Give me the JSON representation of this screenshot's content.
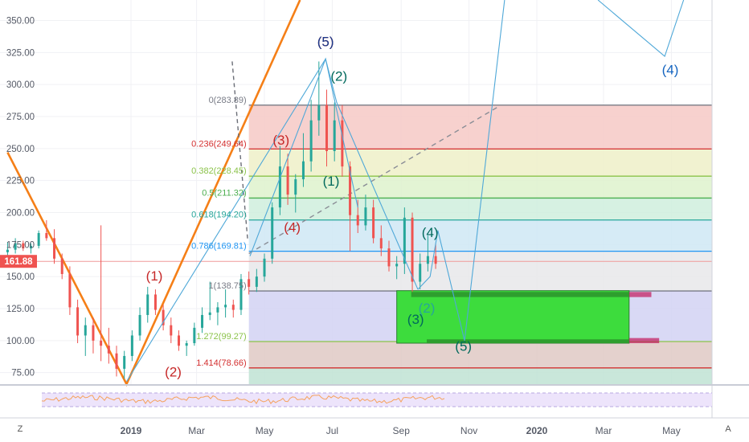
{
  "chart_data": {
    "type": "candlestick",
    "price_axis": {
      "ticks": [
        "350.00",
        "325.00",
        "300.00",
        "275.00",
        "250.00",
        "225.00",
        "200.00",
        "175.00",
        "150.00",
        "125.00",
        "100.00",
        "75.00"
      ],
      "tick_values": [
        350,
        325,
        300,
        275,
        250,
        225,
        200,
        175,
        150,
        125,
        100,
        75
      ],
      "range": [
        66,
        366
      ]
    },
    "time_axis": {
      "labels": [
        "2019",
        "Mar",
        "May",
        "Jul",
        "Sep",
        "Nov",
        "2020",
        "Mar",
        "May"
      ],
      "label_dates": [
        "2019-01-01",
        "2019-03-01",
        "2019-05-01",
        "2019-07-01",
        "2019-09-01",
        "2019-11-01",
        "2020-01-01",
        "2020-03-01",
        "2020-05-01"
      ],
      "bold": [
        "2019",
        "2020"
      ]
    },
    "last_price": {
      "label": "161.88",
      "value": 161.88
    },
    "fib_levels": [
      {
        "ratio": "0",
        "label": "0(283.89)",
        "value": 283.89,
        "color": "#787b86"
      },
      {
        "ratio": "0.236",
        "label": "0.236(249.64)",
        "value": 249.64,
        "color": "#d32f2f"
      },
      {
        "ratio": "0.382",
        "label": "0.382(228.45)",
        "value": 228.45,
        "color": "#8bc34a"
      },
      {
        "ratio": "0.5",
        "label": "0.5(211.32)",
        "value": 211.32,
        "color": "#4caf50"
      },
      {
        "ratio": "0.618",
        "label": "0.618(194.20)",
        "value": 194.2,
        "color": "#26a69a"
      },
      {
        "ratio": "0.786",
        "label": "0.786(169.81)",
        "value": 169.81,
        "color": "#2196f3"
      },
      {
        "ratio": "1",
        "label": "1(138.75)",
        "value": 138.75,
        "color": "#787b86"
      },
      {
        "ratio": "1.272",
        "label": "1.272(99.27)",
        "value": 99.27,
        "color": "#8bc34a"
      },
      {
        "ratio": "1.414",
        "label": "1.414(78.66)",
        "value": 78.66,
        "color": "#d32f2f"
      }
    ],
    "wave_labels": [
      {
        "text": "(1)",
        "date": "2019-01-22",
        "price": 147,
        "color": "#c62828"
      },
      {
        "text": "(2)",
        "date": "2019-02-08",
        "price": 72,
        "color": "#c62828"
      },
      {
        "text": "(3)",
        "date": "2019-05-16",
        "price": 253,
        "color": "#c62828"
      },
      {
        "text": "(4)",
        "date": "2019-05-26",
        "price": 185,
        "color": "#c62828"
      },
      {
        "text": "(5)",
        "date": "2019-06-25",
        "price": 330,
        "color": "#c62828"
      },
      {
        "text": "(5)",
        "date": "2019-06-25",
        "price": 330,
        "color": "#1a3a8c"
      },
      {
        "text": "(2)",
        "date": "2019-07-07",
        "price": 303,
        "color": "#00695c"
      },
      {
        "text": "(1)",
        "date": "2019-06-30",
        "price": 221,
        "color": "#00695c"
      },
      {
        "text": "(4)",
        "date": "2019-09-27",
        "price": 181,
        "color": "#00695c"
      },
      {
        "text": "(3)",
        "date": "2019-09-14",
        "price": 113,
        "color": "#00695c"
      },
      {
        "text": "(2)",
        "date": "2019-09-24",
        "price": 122,
        "color": "#26a69a"
      },
      {
        "text": "(5)",
        "date": "2019-10-27",
        "price": 92,
        "color": "#00695c"
      },
      {
        "text": "(4)",
        "date": "2020-04-30",
        "price": 308,
        "color": "#1565c0"
      }
    ],
    "ohlc": [
      [
        "2018-09-12",
        169,
        177,
        165,
        171
      ],
      [
        "2018-09-19",
        171,
        180,
        168,
        176
      ],
      [
        "2018-09-26",
        176,
        178,
        170,
        172
      ],
      [
        "2018-10-03",
        172,
        176,
        168,
        174
      ],
      [
        "2018-10-10",
        174,
        186,
        172,
        184
      ],
      [
        "2018-10-17",
        184,
        194,
        178,
        180
      ],
      [
        "2018-10-24",
        180,
        187,
        160,
        164
      ],
      [
        "2018-10-31",
        164,
        168,
        148,
        152
      ],
      [
        "2018-11-07",
        152,
        158,
        120,
        126
      ],
      [
        "2018-11-14",
        126,
        132,
        98,
        104
      ],
      [
        "2018-11-21",
        104,
        118,
        88,
        112
      ],
      [
        "2018-11-28",
        112,
        118,
        90,
        100
      ],
      [
        "2018-12-05",
        100,
        190,
        84,
        96
      ],
      [
        "2018-12-12",
        96,
        110,
        82,
        90
      ],
      [
        "2018-12-19",
        90,
        96,
        72,
        78
      ],
      [
        "2018-12-26",
        78,
        92,
        70,
        88
      ],
      [
        "2019-01-02",
        88,
        108,
        84,
        104
      ],
      [
        "2019-01-09",
        104,
        126,
        100,
        120
      ],
      [
        "2019-01-16",
        120,
        142,
        114,
        136
      ],
      [
        "2019-01-23",
        136,
        140,
        120,
        124
      ],
      [
        "2019-01-30",
        124,
        128,
        108,
        112
      ],
      [
        "2019-02-06",
        112,
        118,
        98,
        104
      ],
      [
        "2019-02-13",
        104,
        108,
        92,
        96
      ],
      [
        "2019-02-20",
        96,
        100,
        88,
        98
      ],
      [
        "2019-02-27",
        98,
        114,
        96,
        110
      ],
      [
        "2019-03-06",
        110,
        126,
        106,
        120
      ],
      [
        "2019-03-13",
        120,
        146,
        116,
        122
      ],
      [
        "2019-03-20",
        122,
        130,
        112,
        126
      ],
      [
        "2019-03-27",
        126,
        140,
        118,
        128
      ],
      [
        "2019-04-03",
        128,
        132,
        118,
        124
      ],
      [
        "2019-04-10",
        124,
        152,
        120,
        148
      ],
      [
        "2019-04-17",
        148,
        154,
        136,
        142
      ],
      [
        "2019-04-24",
        142,
        156,
        138,
        150
      ],
      [
        "2019-05-01",
        150,
        168,
        146,
        164
      ],
      [
        "2019-05-08",
        164,
        208,
        160,
        204
      ],
      [
        "2019-05-15",
        204,
        252,
        198,
        236
      ],
      [
        "2019-05-22",
        236,
        246,
        206,
        214
      ],
      [
        "2019-05-29",
        214,
        230,
        200,
        226
      ],
      [
        "2019-06-05",
        226,
        262,
        220,
        240
      ],
      [
        "2019-06-12",
        240,
        288,
        232,
        272
      ],
      [
        "2019-06-19",
        272,
        318,
        260,
        284
      ],
      [
        "2019-06-26",
        284,
        296,
        236,
        248
      ],
      [
        "2019-07-03",
        248,
        286,
        240,
        272
      ],
      [
        "2019-07-10",
        272,
        284,
        228,
        236
      ],
      [
        "2019-07-17",
        236,
        240,
        170,
        198
      ],
      [
        "2019-07-24",
        198,
        210,
        184,
        190
      ],
      [
        "2019-07-31",
        190,
        214,
        186,
        204
      ],
      [
        "2019-08-07",
        204,
        210,
        176,
        180
      ],
      [
        "2019-08-14",
        180,
        190,
        166,
        172
      ],
      [
        "2019-08-21",
        172,
        178,
        154,
        158
      ],
      [
        "2019-08-28",
        158,
        166,
        148,
        160
      ],
      [
        "2019-09-04",
        160,
        204,
        152,
        196
      ],
      [
        "2019-09-11",
        196,
        200,
        138,
        146
      ],
      [
        "2019-09-18",
        146,
        168,
        140,
        160
      ],
      [
        "2019-09-25",
        160,
        182,
        154,
        166
      ],
      [
        "2019-10-02",
        166,
        176,
        156,
        160
      ]
    ],
    "rsi_panel": {
      "visible": true
    }
  },
  "ui": {
    "left_button": {
      "label": "Z"
    },
    "right_button": {
      "label": "A"
    }
  },
  "colors": {
    "up": "#26a69a",
    "down": "#ef5350",
    "impulse": "#f57f17",
    "projection": "#4fa8d8",
    "target_box": "#3ddc3d",
    "rsi_line": "#f5a25d"
  }
}
